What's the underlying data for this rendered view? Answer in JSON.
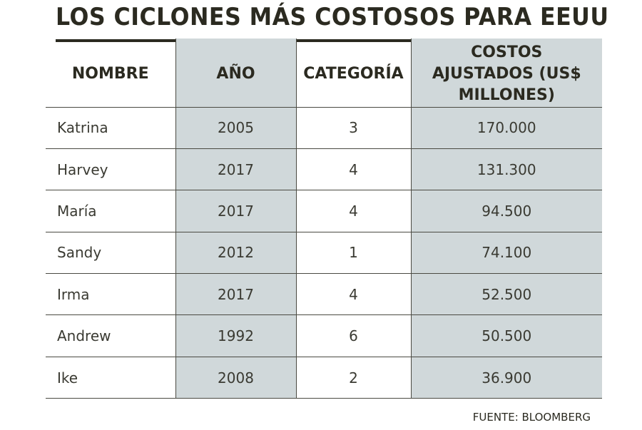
{
  "title": "LOS CICLONES MÁS COSTOSOS PARA EEUU",
  "source": "FUENTE: BLOOMBERG",
  "colors": {
    "text": "#2b2a20",
    "shade": "#d0d8da",
    "rule": "#2b2a20"
  },
  "chart_data": {
    "type": "table",
    "title": "LOS CICLONES MÁS COSTOSOS PARA EEUU",
    "columns": [
      "NOMBRE",
      "AÑO",
      "CATEGORÍA",
      "COSTOS AJUSTADOS (US$ MILLONES)"
    ],
    "rows": [
      {
        "nombre": "Katrina",
        "anio": "2005",
        "categoria": "3",
        "costo": "170.000"
      },
      {
        "nombre": "Harvey",
        "anio": "2017",
        "categoria": "4",
        "costo": "131.300"
      },
      {
        "nombre": "María",
        "anio": "2017",
        "categoria": "4",
        "costo": "94.500"
      },
      {
        "nombre": "Sandy",
        "anio": "2012",
        "categoria": "1",
        "costo": "74.100"
      },
      {
        "nombre": "Irma",
        "anio": "2017",
        "categoria": "4",
        "costo": "52.500"
      },
      {
        "nombre": "Andrew",
        "anio": "1992",
        "categoria": "6",
        "costo": "50.500"
      },
      {
        "nombre": "Ike",
        "anio": "2008",
        "categoria": "2",
        "costo": "36.900"
      }
    ],
    "source": "FUENTE: BLOOMBERG"
  }
}
